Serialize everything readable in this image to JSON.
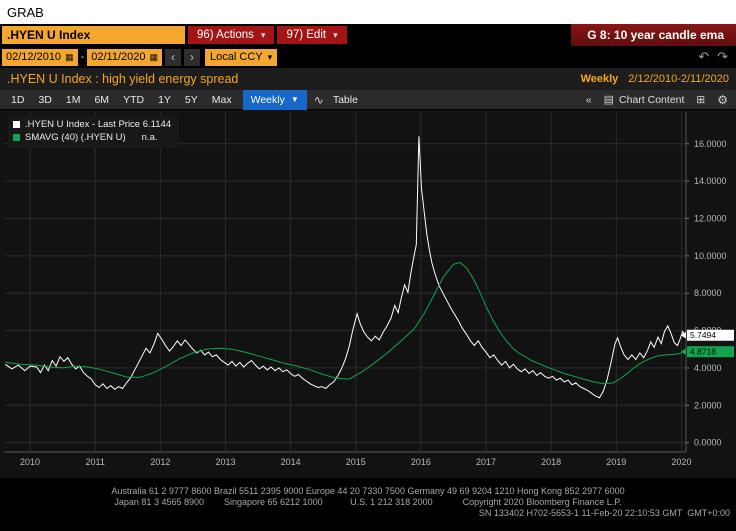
{
  "window": {
    "grab_label": "GRAB"
  },
  "icons": {
    "dropdown": "▾",
    "dropdown_solid": "▼",
    "calendar": "▦",
    "prev": "‹",
    "next": "›",
    "undo": "↶",
    "redo": "↷",
    "collapse": "«",
    "line_chart": "∿",
    "chart_content": "▤",
    "panels": "⊞",
    "gear": "⚙"
  },
  "topbar": {
    "ticker": ".HYEN U Index",
    "actions_label": "96) Actions",
    "edit_label": "97) Edit",
    "g_note": "G 8: 10 year candle ema"
  },
  "datebar": {
    "start_date": "02/12/2010",
    "separator": "-",
    "end_date": "02/11/2020",
    "currency": "Local CCY"
  },
  "titlebar": {
    "title": ".HYEN U Index : high yield energy spread",
    "periodicity": "Weekly",
    "date_range": "2/12/2010-2/11/2020"
  },
  "toolbar": {
    "periods": [
      "1D",
      "3D",
      "1M",
      "6M",
      "YTD",
      "1Y",
      "5Y",
      "Max"
    ],
    "frequency_label": "Weekly",
    "table_label": "Table",
    "chart_content_label": "Chart Content"
  },
  "legend": {
    "series1_label": ".HYEN U Index - Last Price",
    "series1_value": "6.1144",
    "series2_label": "SMAVG (40) (.HYEN U)",
    "series2_value": "n.a."
  },
  "chart_data": {
    "type": "line",
    "title": ".HYEN U Index : high yield energy spread",
    "xlabel": "",
    "ylabel": "",
    "xlim": [
      2009.6,
      2020.07
    ],
    "ylim": [
      -0.5,
      17.7
    ],
    "xticks": [
      2010,
      2011,
      2012,
      2013,
      2014,
      2015,
      2016,
      2017,
      2018,
      2019,
      2020
    ],
    "yticks": [
      0,
      2,
      4,
      6,
      8,
      10,
      12,
      14,
      16
    ],
    "ytick_labels": [
      "0.0000",
      "2.0000",
      "4.0000",
      "6.0000",
      "8.0000",
      "10.0000",
      "12.0000",
      "14.0000",
      "16.0000"
    ],
    "grid": true,
    "legend_position": "top-left",
    "series": [
      {
        "name": ".HYEN U Index - Last Price",
        "color": "#ffffff",
        "last_label": "5.7494",
        "points": [
          [
            2009.62,
            4.2
          ],
          [
            2009.72,
            3.95
          ],
          [
            2009.82,
            4.15
          ],
          [
            2009.92,
            3.85
          ],
          [
            2010.0,
            4.1
          ],
          [
            2010.1,
            4.05
          ],
          [
            2010.16,
            3.75
          ],
          [
            2010.22,
            4.15
          ],
          [
            2010.28,
            3.85
          ],
          [
            2010.34,
            4.4
          ],
          [
            2010.4,
            4.1
          ],
          [
            2010.46,
            4.6
          ],
          [
            2010.52,
            4.35
          ],
          [
            2010.58,
            4.55
          ],
          [
            2010.64,
            4.2
          ],
          [
            2010.7,
            3.95
          ],
          [
            2010.76,
            4.1
          ],
          [
            2010.82,
            3.75
          ],
          [
            2010.88,
            3.55
          ],
          [
            2010.94,
            3.4
          ],
          [
            2011.0,
            3.1
          ],
          [
            2011.06,
            2.95
          ],
          [
            2011.12,
            3.15
          ],
          [
            2011.18,
            2.9
          ],
          [
            2011.24,
            3.05
          ],
          [
            2011.3,
            2.85
          ],
          [
            2011.36,
            3.0
          ],
          [
            2011.42,
            2.9
          ],
          [
            2011.48,
            3.2
          ],
          [
            2011.54,
            3.45
          ],
          [
            2011.6,
            3.85
          ],
          [
            2011.66,
            4.25
          ],
          [
            2011.72,
            4.65
          ],
          [
            2011.78,
            5.05
          ],
          [
            2011.84,
            4.8
          ],
          [
            2011.9,
            5.25
          ],
          [
            2011.96,
            5.85
          ],
          [
            2012.02,
            5.55
          ],
          [
            2012.08,
            5.2
          ],
          [
            2012.14,
            4.9
          ],
          [
            2012.2,
            5.15
          ],
          [
            2012.26,
            5.45
          ],
          [
            2012.32,
            5.2
          ],
          [
            2012.38,
            5.5
          ],
          [
            2012.44,
            5.25
          ],
          [
            2012.5,
            5.0
          ],
          [
            2012.56,
            4.8
          ],
          [
            2012.62,
            4.95
          ],
          [
            2012.68,
            4.7
          ],
          [
            2012.74,
            4.85
          ],
          [
            2012.8,
            4.6
          ],
          [
            2012.86,
            4.7
          ],
          [
            2012.92,
            4.45
          ],
          [
            2012.98,
            4.3
          ],
          [
            2013.04,
            4.15
          ],
          [
            2013.1,
            4.35
          ],
          [
            2013.16,
            4.1
          ],
          [
            2013.22,
            4.3
          ],
          [
            2013.28,
            4.05
          ],
          [
            2013.34,
            4.25
          ],
          [
            2013.4,
            4.4
          ],
          [
            2013.46,
            4.15
          ],
          [
            2013.52,
            3.95
          ],
          [
            2013.58,
            4.1
          ],
          [
            2013.64,
            3.9
          ],
          [
            2013.7,
            4.05
          ],
          [
            2013.76,
            3.85
          ],
          [
            2013.82,
            4.0
          ],
          [
            2013.88,
            3.8
          ],
          [
            2013.94,
            3.9
          ],
          [
            2014.0,
            3.7
          ],
          [
            2014.06,
            3.55
          ],
          [
            2014.12,
            3.65
          ],
          [
            2014.18,
            3.45
          ],
          [
            2014.24,
            3.3
          ],
          [
            2014.3,
            3.15
          ],
          [
            2014.36,
            3.05
          ],
          [
            2014.42,
            2.95
          ],
          [
            2014.48,
            3.0
          ],
          [
            2014.54,
            2.9
          ],
          [
            2014.6,
            3.1
          ],
          [
            2014.66,
            3.25
          ],
          [
            2014.72,
            3.55
          ],
          [
            2014.78,
            3.95
          ],
          [
            2014.84,
            4.45
          ],
          [
            2014.9,
            5.15
          ],
          [
            2014.96,
            6.1
          ],
          [
            2015.02,
            6.9
          ],
          [
            2015.07,
            6.35
          ],
          [
            2015.12,
            5.95
          ],
          [
            2015.18,
            5.65
          ],
          [
            2015.24,
            5.45
          ],
          [
            2015.3,
            5.7
          ],
          [
            2015.36,
            5.5
          ],
          [
            2015.42,
            5.9
          ],
          [
            2015.48,
            6.25
          ],
          [
            2015.54,
            6.65
          ],
          [
            2015.6,
            7.35
          ],
          [
            2015.65,
            6.95
          ],
          [
            2015.7,
            7.75
          ],
          [
            2015.75,
            8.45
          ],
          [
            2015.8,
            8.05
          ],
          [
            2015.85,
            9.15
          ],
          [
            2015.89,
            9.9
          ],
          [
            2015.93,
            10.6
          ],
          [
            2015.97,
            16.4
          ],
          [
            2016.01,
            13.6
          ],
          [
            2016.05,
            12.4
          ],
          [
            2016.09,
            11.2
          ],
          [
            2016.13,
            10.3
          ],
          [
            2016.17,
            9.6
          ],
          [
            2016.22,
            9.0
          ],
          [
            2016.28,
            8.4
          ],
          [
            2016.34,
            8.0
          ],
          [
            2016.4,
            7.6
          ],
          [
            2016.46,
            7.2
          ],
          [
            2016.52,
            6.85
          ],
          [
            2016.58,
            6.5
          ],
          [
            2016.64,
            6.1
          ],
          [
            2016.7,
            5.8
          ],
          [
            2016.76,
            5.45
          ],
          [
            2016.82,
            5.2
          ],
          [
            2016.88,
            5.45
          ],
          [
            2016.94,
            5.1
          ],
          [
            2017.0,
            4.85
          ],
          [
            2017.06,
            4.55
          ],
          [
            2017.12,
            4.7
          ],
          [
            2017.18,
            4.4
          ],
          [
            2017.24,
            4.15
          ],
          [
            2017.3,
            4.35
          ],
          [
            2017.36,
            4.0
          ],
          [
            2017.42,
            4.2
          ],
          [
            2017.48,
            3.95
          ],
          [
            2017.54,
            3.8
          ],
          [
            2017.6,
            3.95
          ],
          [
            2017.66,
            3.7
          ],
          [
            2017.72,
            3.85
          ],
          [
            2017.78,
            3.6
          ],
          [
            2017.84,
            3.75
          ],
          [
            2017.9,
            3.55
          ],
          [
            2017.96,
            3.45
          ],
          [
            2018.02,
            3.55
          ],
          [
            2018.08,
            3.35
          ],
          [
            2018.14,
            3.45
          ],
          [
            2018.2,
            3.25
          ],
          [
            2018.26,
            3.35
          ],
          [
            2018.32,
            3.1
          ],
          [
            2018.38,
            3.2
          ],
          [
            2018.44,
            3.0
          ],
          [
            2018.5,
            2.9
          ],
          [
            2018.56,
            2.8
          ],
          [
            2018.62,
            2.65
          ],
          [
            2018.68,
            2.5
          ],
          [
            2018.74,
            2.4
          ],
          [
            2018.8,
            2.75
          ],
          [
            2018.86,
            3.4
          ],
          [
            2018.92,
            4.3
          ],
          [
            2018.98,
            5.3
          ],
          [
            2019.02,
            5.6
          ],
          [
            2019.07,
            5.1
          ],
          [
            2019.12,
            4.7
          ],
          [
            2019.18,
            4.45
          ],
          [
            2019.24,
            4.7
          ],
          [
            2019.3,
            4.45
          ],
          [
            2019.36,
            4.8
          ],
          [
            2019.42,
            4.55
          ],
          [
            2019.48,
            4.95
          ],
          [
            2019.53,
            5.4
          ],
          [
            2019.58,
            5.1
          ],
          [
            2019.64,
            5.65
          ],
          [
            2019.69,
            5.3
          ],
          [
            2019.74,
            5.95
          ],
          [
            2019.79,
            6.25
          ],
          [
            2019.84,
            5.85
          ],
          [
            2019.89,
            5.35
          ],
          [
            2019.94,
            5.2
          ],
          [
            2019.98,
            5.55
          ],
          [
            2020.02,
            5.95
          ],
          [
            2020.05,
            5.75
          ]
        ]
      },
      {
        "name": "SMAVG (40) (.HYEN U)",
        "color": "#0fa64d",
        "last_label": "4.8718",
        "points": [
          [
            2009.62,
            4.3
          ],
          [
            2009.85,
            4.2
          ],
          [
            2010.1,
            4.15
          ],
          [
            2010.3,
            4.05
          ],
          [
            2010.5,
            4.0
          ],
          [
            2010.7,
            4.1
          ],
          [
            2010.9,
            4.05
          ],
          [
            2011.1,
            3.9
          ],
          [
            2011.3,
            3.7
          ],
          [
            2011.5,
            3.5
          ],
          [
            2011.7,
            3.5
          ],
          [
            2011.9,
            3.75
          ],
          [
            2012.1,
            4.1
          ],
          [
            2012.3,
            4.5
          ],
          [
            2012.5,
            4.8
          ],
          [
            2012.7,
            5.0
          ],
          [
            2012.9,
            5.05
          ],
          [
            2013.1,
            5.0
          ],
          [
            2013.3,
            4.85
          ],
          [
            2013.5,
            4.65
          ],
          [
            2013.7,
            4.45
          ],
          [
            2013.9,
            4.25
          ],
          [
            2014.1,
            4.1
          ],
          [
            2014.3,
            3.9
          ],
          [
            2014.5,
            3.65
          ],
          [
            2014.7,
            3.45
          ],
          [
            2014.9,
            3.4
          ],
          [
            2015.1,
            3.8
          ],
          [
            2015.3,
            4.3
          ],
          [
            2015.5,
            4.85
          ],
          [
            2015.7,
            5.45
          ],
          [
            2015.9,
            6.1
          ],
          [
            2016.05,
            6.9
          ],
          [
            2016.2,
            7.9
          ],
          [
            2016.35,
            8.9
          ],
          [
            2016.5,
            9.55
          ],
          [
            2016.6,
            9.65
          ],
          [
            2016.7,
            9.35
          ],
          [
            2016.8,
            8.8
          ],
          [
            2016.9,
            8.1
          ],
          [
            2017.0,
            7.3
          ],
          [
            2017.1,
            6.6
          ],
          [
            2017.2,
            6.0
          ],
          [
            2017.3,
            5.5
          ],
          [
            2017.4,
            5.1
          ],
          [
            2017.5,
            4.8
          ],
          [
            2017.6,
            4.6
          ],
          [
            2017.7,
            4.4
          ],
          [
            2017.8,
            4.25
          ],
          [
            2017.9,
            4.1
          ],
          [
            2018.05,
            3.9
          ],
          [
            2018.2,
            3.7
          ],
          [
            2018.35,
            3.55
          ],
          [
            2018.5,
            3.4
          ],
          [
            2018.65,
            3.25
          ],
          [
            2018.8,
            3.15
          ],
          [
            2018.95,
            3.2
          ],
          [
            2019.05,
            3.4
          ],
          [
            2019.15,
            3.65
          ],
          [
            2019.25,
            3.95
          ],
          [
            2019.35,
            4.2
          ],
          [
            2019.45,
            4.4
          ],
          [
            2019.55,
            4.55
          ],
          [
            2019.65,
            4.65
          ],
          [
            2019.75,
            4.7
          ],
          [
            2019.85,
            4.72
          ],
          [
            2019.95,
            4.75
          ],
          [
            2020.05,
            4.87
          ]
        ]
      }
    ]
  },
  "footer": {
    "lines": [
      "Australia 61 2 9777 8600 Brazil 5511 2395 9000 Europe 44 20 7330 7500 Germany 49 69 9204 1210 Hong Kong 852 2977 6000",
      "Japan 81 3 4565 8900        Singapore 65 6212 1000           U.S. 1 212 318 2000            Copyright 2020 Bloomberg Finance L.P.",
      "SN 133402 H702-5653-1 11-Feb-20 22:10:53 GMT  GMT+0:00"
    ]
  }
}
